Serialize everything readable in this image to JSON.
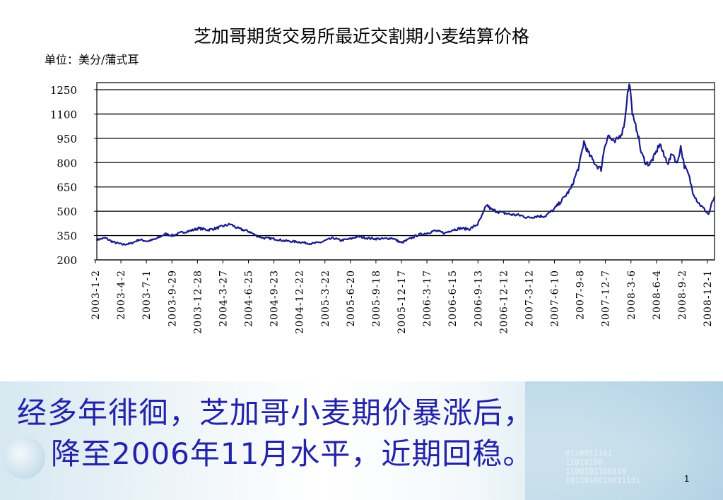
{
  "chart_data": {
    "type": "line",
    "title": "芝加哥期货交易所最近交割期小麦结算价格",
    "unit_label": "单位：美分/蒲式耳",
    "ylim": [
      200,
      1250
    ],
    "yticks": [
      1250,
      1100,
      950,
      800,
      650,
      500,
      350,
      200
    ],
    "xlim": [
      "2003-01-02",
      "2008-12-31"
    ],
    "xticks": [
      "2003-1-2",
      "2003-4-2",
      "2003-7-1",
      "2003-9-29",
      "2003-12-28",
      "2004-3-27",
      "2004-6-25",
      "2004-9-23",
      "2004-12-22",
      "2005-3-22",
      "2005-6-20",
      "2005-9-18",
      "2005-12-17",
      "2006-3-17",
      "2006-6-15",
      "2006-9-13",
      "2006-12-12",
      "2007-3-12",
      "2007-6-10",
      "2007-9-8",
      "2007-12-7",
      "2008-3-6",
      "2008-6-4",
      "2008-9-2",
      "2008-12-1"
    ],
    "grid": "horizontal",
    "line_color": "#1a1a8c",
    "series": [
      {
        "x": [
          "2003-01-02",
          "2003-02-01",
          "2003-03-01",
          "2003-04-02",
          "2003-05-01",
          "2003-06-01",
          "2003-07-01",
          "2003-08-01",
          "2003-09-01",
          "2003-09-29",
          "2003-11-01",
          "2003-12-01",
          "2003-12-28",
          "2004-02-01",
          "2004-03-01",
          "2004-03-27",
          "2004-04-20",
          "2004-05-15",
          "2004-06-25",
          "2004-07-20",
          "2004-08-15",
          "2004-09-23",
          "2004-10-20",
          "2004-11-15",
          "2004-12-22",
          "2005-02-01",
          "2005-03-10",
          "2005-03-22",
          "2005-04-20",
          "2005-05-15",
          "2005-06-20",
          "2005-07-15",
          "2005-08-15",
          "2005-09-18",
          "2005-10-15",
          "2005-11-15",
          "2005-12-17",
          "2006-01-15",
          "2006-02-15",
          "2006-03-17",
          "2006-04-15",
          "2006-05-20",
          "2006-06-15",
          "2006-07-15",
          "2006-08-15",
          "2006-09-13",
          "2006-10-01",
          "2006-10-15",
          "2006-11-01",
          "2006-11-20",
          "2006-12-12",
          "2007-01-10",
          "2007-02-10",
          "2007-03-12",
          "2007-04-10",
          "2007-05-10",
          "2007-06-10",
          "2007-07-10",
          "2007-08-10",
          "2007-09-08",
          "2007-09-25",
          "2007-10-10",
          "2007-10-25",
          "2007-11-10",
          "2007-11-25",
          "2007-12-07",
          "2007-12-20",
          "2008-01-10",
          "2008-01-25",
          "2008-02-10",
          "2008-02-20",
          "2008-02-27",
          "2008-03-06",
          "2008-03-12",
          "2008-03-20",
          "2008-04-01",
          "2008-04-15",
          "2008-05-01",
          "2008-05-15",
          "2008-06-04",
          "2008-06-20",
          "2008-07-05",
          "2008-07-20",
          "2008-08-05",
          "2008-08-20",
          "2008-09-02",
          "2008-09-15",
          "2008-10-01",
          "2008-10-15",
          "2008-11-01",
          "2008-11-15",
          "2008-12-01",
          "2008-12-10",
          "2008-12-20",
          "2008-12-31"
        ],
        "y": [
          325,
          335,
          310,
          295,
          300,
          325,
          315,
          330,
          360,
          350,
          370,
          380,
          395,
          385,
          395,
          410,
          420,
          395,
          375,
          350,
          335,
          330,
          320,
          315,
          310,
          300,
          310,
          320,
          335,
          320,
          330,
          345,
          335,
          330,
          330,
          335,
          305,
          330,
          355,
          365,
          380,
          365,
          385,
          395,
          390,
          420,
          480,
          540,
          510,
          500,
          490,
          480,
          475,
          460,
          470,
          470,
          510,
          570,
          640,
          780,
          930,
          860,
          820,
          780,
          760,
          900,
          970,
          920,
          950,
          1000,
          1100,
          1250,
          1280,
          1150,
          1050,
          1000,
          860,
          800,
          790,
          850,
          920,
          840,
          800,
          860,
          790,
          900,
          780,
          720,
          620,
          560,
          530,
          500,
          480,
          540,
          590
        ]
      }
    ]
  },
  "caption": {
    "line1": "经多年徘徊，芝加哥小麦期价暴涨后，",
    "line2": "降至2006年11月水平，近期回稳。"
  },
  "page_number": "1",
  "decor": {
    "binary_text": "0110011101\n11010100\n1100101100110\n1011010010011101"
  }
}
